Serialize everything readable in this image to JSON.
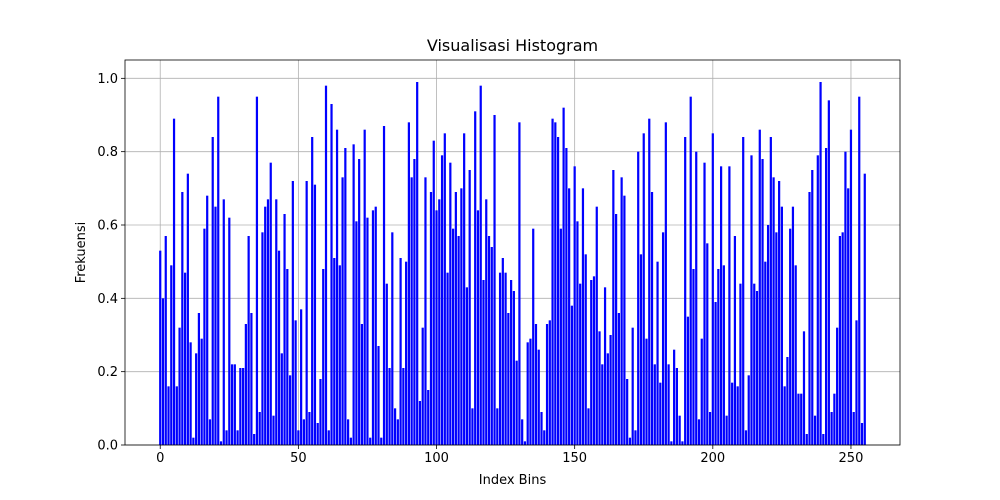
{
  "chart_data": {
    "type": "bar",
    "title": "Visualisasi Histogram",
    "xlabel": "Index Bins",
    "ylabel": "Frekuensi",
    "xlim": [
      -12.75,
      267.75
    ],
    "ylim": [
      0.0,
      1.05
    ],
    "xticks": [
      0,
      50,
      100,
      150,
      200,
      250
    ],
    "yticks": [
      0.0,
      0.2,
      0.4,
      0.6,
      0.8,
      1.0
    ],
    "xtick_labels": [
      "0",
      "50",
      "100",
      "150",
      "200",
      "250"
    ],
    "ytick_labels": [
      "0.0",
      "0.2",
      "0.4",
      "0.6",
      "0.8",
      "1.0"
    ],
    "grid": true,
    "bar_color": "#0000ff",
    "x": [
      0,
      1,
      2,
      3,
      4,
      5,
      6,
      7,
      8,
      9,
      10,
      11,
      12,
      13,
      14,
      15,
      16,
      17,
      18,
      19,
      20,
      21,
      22,
      23,
      24,
      25,
      26,
      27,
      28,
      29,
      30,
      31,
      32,
      33,
      34,
      35,
      36,
      37,
      38,
      39,
      40,
      41,
      42,
      43,
      44,
      45,
      46,
      47,
      48,
      49,
      50,
      51,
      52,
      53,
      54,
      55,
      56,
      57,
      58,
      59,
      60,
      61,
      62,
      63,
      64,
      65,
      66,
      67,
      68,
      69,
      70,
      71,
      72,
      73,
      74,
      75,
      76,
      77,
      78,
      79,
      80,
      81,
      82,
      83,
      84,
      85,
      86,
      87,
      88,
      89,
      90,
      91,
      92,
      93,
      94,
      95,
      96,
      97,
      98,
      99,
      100,
      101,
      102,
      103,
      104,
      105,
      106,
      107,
      108,
      109,
      110,
      111,
      112,
      113,
      114,
      115,
      116,
      117,
      118,
      119,
      120,
      121,
      122,
      123,
      124,
      125,
      126,
      127,
      128,
      129,
      130,
      131,
      132,
      133,
      134,
      135,
      136,
      137,
      138,
      139,
      140,
      141,
      142,
      143,
      144,
      145,
      146,
      147,
      148,
      149,
      150,
      151,
      152,
      153,
      154,
      155,
      156,
      157,
      158,
      159,
      160,
      161,
      162,
      163,
      164,
      165,
      166,
      167,
      168,
      169,
      170,
      171,
      172,
      173,
      174,
      175,
      176,
      177,
      178,
      179,
      180,
      181,
      182,
      183,
      184,
      185,
      186,
      187,
      188,
      189,
      190,
      191,
      192,
      193,
      194,
      195,
      196,
      197,
      198,
      199,
      200,
      201,
      202,
      203,
      204,
      205,
      206,
      207,
      208,
      209,
      210,
      211,
      212,
      213,
      214,
      215,
      216,
      217,
      218,
      219,
      220,
      221,
      222,
      223,
      224,
      225,
      226,
      227,
      228,
      229,
      230,
      231,
      232,
      233,
      234,
      235,
      236,
      237,
      238,
      239,
      240,
      241,
      242,
      243,
      244,
      245,
      246,
      247,
      248,
      249,
      250,
      251,
      252,
      253,
      254,
      255
    ],
    "values": [
      0.53,
      0.4,
      0.57,
      0.16,
      0.49,
      0.89,
      0.16,
      0.32,
      0.69,
      0.47,
      0.74,
      0.28,
      0.02,
      0.25,
      0.36,
      0.29,
      0.59,
      0.68,
      0.07,
      0.84,
      0.65,
      0.95,
      0.01,
      0.67,
      0.04,
      0.62,
      0.22,
      0.22,
      0.04,
      0.21,
      0.21,
      0.33,
      0.57,
      0.36,
      0.03,
      0.95,
      0.09,
      0.58,
      0.65,
      0.67,
      0.77,
      0.08,
      0.67,
      0.53,
      0.25,
      0.63,
      0.48,
      0.19,
      0.72,
      0.34,
      0.04,
      0.37,
      0.07,
      0.72,
      0.09,
      0.84,
      0.71,
      0.06,
      0.18,
      0.48,
      0.98,
      0.04,
      0.93,
      0.51,
      0.86,
      0.49,
      0.73,
      0.81,
      0.07,
      0.02,
      0.82,
      0.61,
      0.78,
      0.33,
      0.86,
      0.62,
      0.02,
      0.64,
      0.65,
      0.27,
      0.02,
      0.87,
      0.44,
      0.21,
      0.58,
      0.1,
      0.07,
      0.51,
      0.21,
      0.5,
      0.88,
      0.73,
      0.78,
      0.99,
      0.12,
      0.32,
      0.73,
      0.15,
      0.69,
      0.83,
      0.64,
      0.67,
      0.79,
      0.85,
      0.47,
      0.77,
      0.59,
      0.69,
      0.57,
      0.7,
      0.85,
      0.43,
      0.75,
      0.1,
      0.91,
      0.64,
      0.98,
      0.45,
      0.67,
      0.57,
      0.54,
      0.9,
      0.1,
      0.47,
      0.51,
      0.47,
      0.36,
      0.45,
      0.42,
      0.23,
      0.88,
      0.07,
      0.01,
      0.28,
      0.29,
      0.59,
      0.33,
      0.26,
      0.09,
      0.04,
      0.33,
      0.34,
      0.89,
      0.88,
      0.84,
      0.59,
      0.92,
      0.81,
      0.7,
      0.38,
      0.76,
      0.61,
      0.44,
      0.7,
      0.52,
      0.1,
      0.45,
      0.46,
      0.65,
      0.31,
      0.22,
      0.43,
      0.25,
      0.3,
      0.75,
      0.63,
      0.36,
      0.73,
      0.68,
      0.18,
      0.02,
      0.32,
      0.04,
      0.8,
      0.52,
      0.85,
      0.29,
      0.89,
      0.69,
      0.22,
      0.5,
      0.17,
      0.58,
      0.88,
      0.22,
      0.01,
      0.26,
      0.21,
      0.08,
      0.01,
      0.84,
      0.35,
      0.95,
      0.48,
      0.8,
      0.07,
      0.29,
      0.77,
      0.55,
      0.09,
      0.85,
      0.39,
      0.48,
      0.76,
      0.49,
      0.08,
      0.76,
      0.17,
      0.57,
      0.16,
      0.44,
      0.84,
      0.04,
      0.19,
      0.79,
      0.44,
      0.42,
      0.86,
      0.78,
      0.5,
      0.6,
      0.84,
      0.73,
      0.58,
      0.72,
      0.65,
      0.16,
      0.24,
      0.59,
      0.65,
      0.49,
      0.14,
      0.14,
      0.31,
      0.03,
      0.69,
      0.75,
      0.08,
      0.79,
      0.99,
      0.03,
      0.81,
      0.94,
      0.09,
      0.14,
      0.32,
      0.57,
      0.58,
      0.8,
      0.7,
      0.86,
      0.09,
      0.34,
      0.95,
      0.06,
      0.74
    ]
  }
}
